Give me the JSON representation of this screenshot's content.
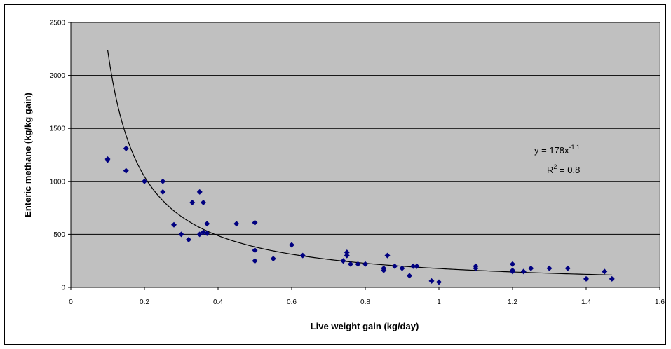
{
  "chart_data": {
    "type": "scatter",
    "xlabel": "Live weight gain (kg/day)",
    "ylabel": "Enteric methane (kg/kg gain)",
    "xlim": [
      0,
      1.6
    ],
    "ylim": [
      0,
      2500
    ],
    "x_ticks": [
      "0",
      "0.2",
      "0.4",
      "0.6",
      "0.8",
      "1",
      "1.2",
      "1.4",
      "1.6"
    ],
    "y_ticks": [
      "0",
      "500",
      "1000",
      "1500",
      "2000",
      "2500"
    ],
    "grid": "horizontal",
    "plot_background": "#C0C0C0",
    "marker_color": "#000080",
    "trendline": {
      "type": "power",
      "coefficient": 178,
      "exponent": -1.1,
      "x_range": [
        0.1,
        1.47
      ],
      "equation_base": "y = 178x",
      "equation_exp": "-1.1",
      "r2_prefix": "R",
      "r2_sup": "2",
      "r2_suffix": " = 0.8",
      "color": "#000000"
    },
    "points": [
      [
        0.1,
        1210
      ],
      [
        0.1,
        1200
      ],
      [
        0.15,
        1310
      ],
      [
        0.15,
        1100
      ],
      [
        0.2,
        1000
      ],
      [
        0.25,
        1000
      ],
      [
        0.25,
        900
      ],
      [
        0.28,
        590
      ],
      [
        0.3,
        500
      ],
      [
        0.32,
        450
      ],
      [
        0.33,
        800
      ],
      [
        0.35,
        900
      ],
      [
        0.35,
        500
      ],
      [
        0.36,
        800
      ],
      [
        0.36,
        520
      ],
      [
        0.37,
        600
      ],
      [
        0.37,
        510
      ],
      [
        0.45,
        600
      ],
      [
        0.5,
        610
      ],
      [
        0.5,
        350
      ],
      [
        0.5,
        250
      ],
      [
        0.55,
        270
      ],
      [
        0.6,
        400
      ],
      [
        0.63,
        300
      ],
      [
        0.74,
        250
      ],
      [
        0.75,
        330
      ],
      [
        0.75,
        300
      ],
      [
        0.76,
        220
      ],
      [
        0.78,
        220
      ],
      [
        0.8,
        220
      ],
      [
        0.85,
        180
      ],
      [
        0.85,
        160
      ],
      [
        0.86,
        300
      ],
      [
        0.88,
        200
      ],
      [
        0.9,
        180
      ],
      [
        0.92,
        110
      ],
      [
        0.93,
        200
      ],
      [
        0.94,
        200
      ],
      [
        0.98,
        60
      ],
      [
        1.0,
        50
      ],
      [
        1.1,
        200
      ],
      [
        1.1,
        180
      ],
      [
        1.2,
        220
      ],
      [
        1.2,
        160
      ],
      [
        1.2,
        150
      ],
      [
        1.23,
        150
      ],
      [
        1.25,
        180
      ],
      [
        1.3,
        180
      ],
      [
        1.35,
        180
      ],
      [
        1.4,
        80
      ],
      [
        1.45,
        150
      ],
      [
        1.47,
        80
      ]
    ]
  }
}
